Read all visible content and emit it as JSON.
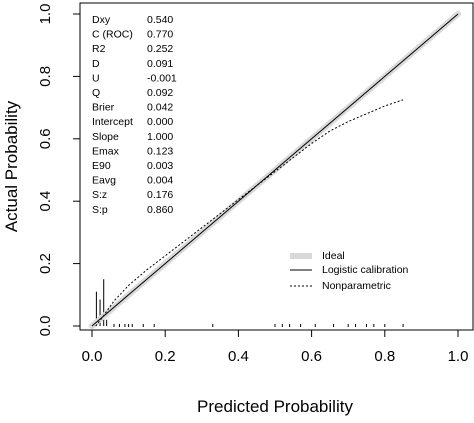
{
  "chart_data": {
    "type": "line",
    "title": "",
    "xlabel": "Predicted Probability",
    "ylabel": "Actual Probability",
    "xlim": [
      0,
      1
    ],
    "ylim": [
      0,
      1
    ],
    "xticks": [
      "0.0",
      "0.2",
      "0.4",
      "0.6",
      "0.8",
      "1.0"
    ],
    "yticks": [
      "0.0",
      "0.2",
      "0.4",
      "0.6",
      "0.8",
      "1.0"
    ],
    "grid": false,
    "legend_position": "bottom-right",
    "stats": [
      {
        "label": "Dxy",
        "value": "0.540"
      },
      {
        "label": "C (ROC)",
        "value": "0.770"
      },
      {
        "label": "R2",
        "value": "0.252"
      },
      {
        "label": "D",
        "value": "0.091"
      },
      {
        "label": "U",
        "value": "-0.001"
      },
      {
        "label": "Q",
        "value": "0.092"
      },
      {
        "label": "Brier",
        "value": "0.042"
      },
      {
        "label": "Intercept",
        "value": "0.000"
      },
      {
        "label": "Slope",
        "value": "1.000"
      },
      {
        "label": "Emax",
        "value": "0.123"
      },
      {
        "label": "E90",
        "value": "0.003"
      },
      {
        "label": "Eavg",
        "value": "0.004"
      },
      {
        "label": "S:z",
        "value": "0.176"
      },
      {
        "label": "S:p",
        "value": "0.860"
      }
    ],
    "series": [
      {
        "name": "Ideal",
        "style": "thick-light-gray",
        "color": "#d9d9d9",
        "x": [
          0,
          1
        ],
        "y": [
          0,
          1
        ]
      },
      {
        "name": "Logistic calibration",
        "style": "solid",
        "color": "#000000",
        "x": [
          0.0,
          0.1,
          0.2,
          0.3,
          0.4,
          0.5,
          0.6,
          0.7,
          0.8,
          0.9,
          1.0
        ],
        "y": [
          0.0,
          0.1,
          0.2,
          0.3,
          0.4,
          0.5,
          0.6,
          0.7,
          0.8,
          0.9,
          1.0
        ]
      },
      {
        "name": "Nonparametric",
        "style": "dotted",
        "color": "#000000",
        "x": [
          0.01,
          0.03,
          0.06,
          0.1,
          0.15,
          0.2,
          0.25,
          0.3,
          0.35,
          0.4,
          0.45,
          0.5,
          0.55,
          0.6,
          0.65,
          0.7,
          0.75,
          0.8,
          0.85
        ],
        "y": [
          0.0,
          0.03,
          0.08,
          0.13,
          0.18,
          0.225,
          0.27,
          0.315,
          0.36,
          0.405,
          0.45,
          0.495,
          0.54,
          0.585,
          0.625,
          0.655,
          0.68,
          0.705,
          0.725
        ]
      }
    ],
    "histogram_spikes": {
      "upper": [
        {
          "x": 0.012,
          "height": 0.11
        },
        {
          "x": 0.022,
          "height": 0.085
        },
        {
          "x": 0.032,
          "height": 0.15
        },
        {
          "x": 0.04,
          "height": 0.02
        }
      ],
      "lower_x": [
        0.06,
        0.075,
        0.09,
        0.1,
        0.11,
        0.14,
        0.17,
        0.33,
        0.5,
        0.52,
        0.54,
        0.57,
        0.61,
        0.66,
        0.7,
        0.72,
        0.75,
        0.77,
        0.8,
        0.85
      ]
    }
  }
}
